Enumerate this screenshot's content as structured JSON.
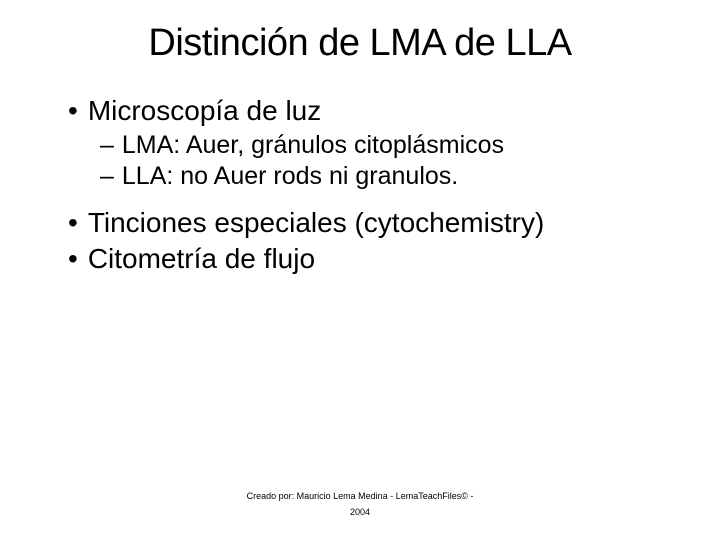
{
  "slide": {
    "title": "Distinción de LMA de LLA",
    "background_color": "#ffffff",
    "text_color": "#000000",
    "title_fontsize": 38,
    "l1_fontsize": 28,
    "l2_fontsize": 25,
    "footer_fontsize": 9,
    "title_weight": 400,
    "font_family": "Verdana",
    "bullets": [
      {
        "level": 1,
        "marker": "•",
        "text": "Microscopía de luz"
      },
      {
        "level": 2,
        "marker": "–",
        "text": "LMA: Auer, gránulos citoplásmicos"
      },
      {
        "level": 2,
        "marker": "–",
        "text": "LLA: no Auer rods ni granulos."
      },
      {
        "level": 1,
        "marker": "•",
        "text": "Tinciones especiales (cytochemistry)"
      },
      {
        "level": 1,
        "marker": "•",
        "text": "Citometría de flujo"
      }
    ],
    "footer_line1": "Creado por: Mauricio Lema Medina - LemaTeachFiles© -",
    "footer_line2": "2004"
  }
}
